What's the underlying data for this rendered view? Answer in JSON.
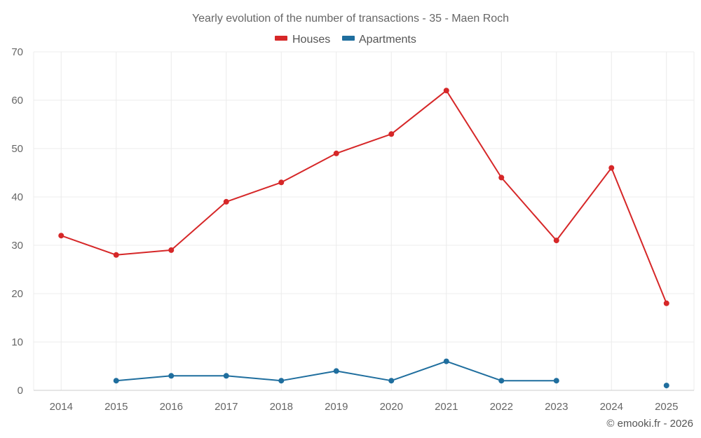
{
  "chart_data": {
    "type": "line",
    "title": "Yearly evolution of the number of transactions - 35 - Maen Roch",
    "xlabel": "",
    "ylabel": "",
    "categories": [
      "2014",
      "2015",
      "2016",
      "2017",
      "2018",
      "2019",
      "2020",
      "2021",
      "2022",
      "2023",
      "2024",
      "2025"
    ],
    "ylim": [
      0,
      70
    ],
    "yticks": [
      "0",
      "10",
      "20",
      "30",
      "40",
      "50",
      "60",
      "70"
    ],
    "grid": true,
    "legend_position": "top-center",
    "series": [
      {
        "name": "Houses",
        "color": "#d62728",
        "values": [
          32,
          28,
          29,
          39,
          43,
          49,
          53,
          62,
          44,
          31,
          46,
          18
        ]
      },
      {
        "name": "Apartments",
        "color": "#1f6e9e",
        "values": [
          null,
          2,
          3,
          3,
          2,
          4,
          2,
          6,
          2,
          2,
          null,
          1
        ]
      }
    ]
  },
  "footer": "© emooki.fr - 2026"
}
